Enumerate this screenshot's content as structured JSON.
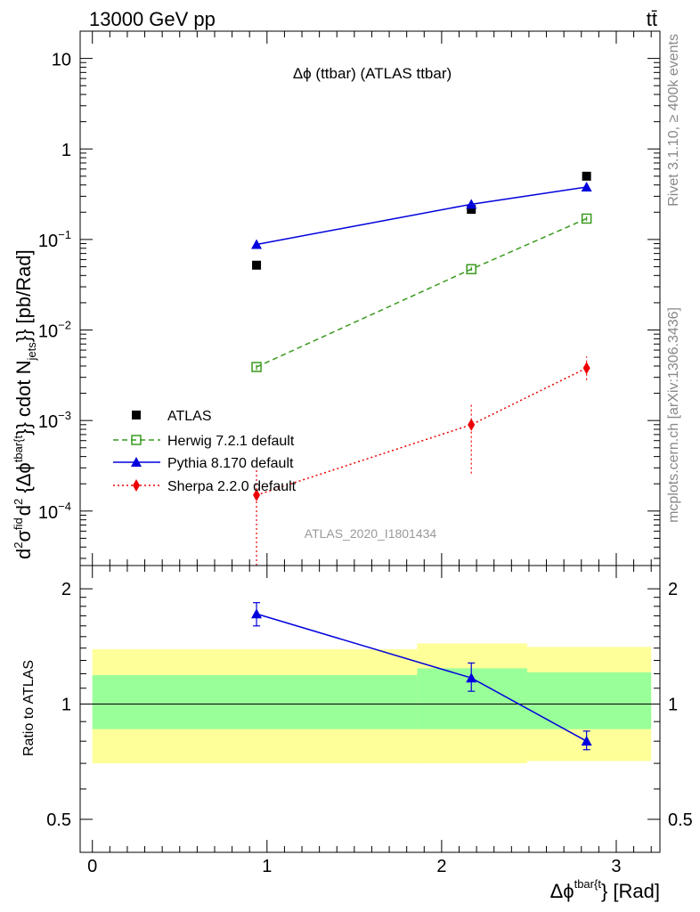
{
  "header": {
    "energy_label": "13000 GeV pp",
    "process_label": "tt̄"
  },
  "side_labels": {
    "rivet": "Rivet 3.1.10, ≥ 400k events",
    "mcplots": "mcplots.cern.ch [arXiv:1306.3436]"
  },
  "chart_data": [
    {
      "type": "line",
      "title": "Δϕ (ttbar) (ATLAS ttbar)",
      "watermark": "ATLAS_2020_I1801434",
      "ylabel": {
        "d1": "d",
        "sup2a": "2",
        "sigma": "σ",
        "fid": "fid",
        "d2": "d",
        "sup2b": "2",
        "brace": " {Δϕ",
        "tbar": "tbar{t",
        "cdot": "}} cdot N",
        "jets": "jets",
        "unit": "}} [pb/Rad]"
      },
      "ylog": true,
      "ylim": [
        2.5e-05,
        20
      ],
      "y_ticks": [
        {
          "value": 0.0001,
          "base": "10",
          "exp": "−4"
        },
        {
          "value": 0.001,
          "base": "10",
          "exp": "−3"
        },
        {
          "value": 0.01,
          "base": "10",
          "exp": "−2"
        },
        {
          "value": 0.1,
          "base": "10",
          "exp": "−1"
        },
        {
          "value": 1,
          "base": "1",
          "exp": ""
        },
        {
          "value": 10,
          "base": "10",
          "exp": ""
        }
      ],
      "xlim": [
        -0.07,
        3.25
      ],
      "legend_position": "bottom-left",
      "series": [
        {
          "name": "ATLAS",
          "color": "#000000",
          "marker": "square",
          "line": "none",
          "x": [
            0.94,
            2.17,
            2.83
          ],
          "y": [
            0.052,
            0.215,
            0.5
          ]
        },
        {
          "name": "Herwig 7.2.1 default",
          "color": "#3a9a1e",
          "marker": "open-square",
          "line": "dashed",
          "x": [
            0.94,
            2.17,
            2.83
          ],
          "y": [
            0.0039,
            0.047,
            0.17
          ],
          "yerr_low": [
            0.0036,
            0.045,
            0.16
          ],
          "yerr_high": [
            0.0042,
            0.05,
            0.18
          ]
        },
        {
          "name": "Pythia 8.170 default",
          "color": "#0000dd",
          "marker": "triangle",
          "line": "solid",
          "x": [
            0.94,
            2.17,
            2.83
          ],
          "y": [
            0.088,
            0.245,
            0.38
          ]
        },
        {
          "name": "Sherpa 2.2.0 default",
          "color": "#ee0000",
          "marker": "diamond",
          "line": "dotted",
          "x": [
            0.94,
            2.17,
            2.83
          ],
          "y": [
            0.00015,
            0.0009,
            0.0038
          ],
          "yerr_low": [
            1e-05,
            0.00026,
            0.0028
          ],
          "yerr_high": [
            0.0003,
            0.00155,
            0.0051
          ]
        }
      ]
    },
    {
      "type": "line",
      "ylabel": "Ratio to ATLAS",
      "xlabel": {
        "delta": "Δϕ",
        "sup": "tbar{t",
        "rest": "} [Rad]"
      },
      "ylim": [
        0.41,
        2.3
      ],
      "y_ticks": [
        {
          "value": 0.5,
          "label": "0.5"
        },
        {
          "value": 1,
          "label": "1"
        },
        {
          "value": 2,
          "label": "2"
        }
      ],
      "xlim": [
        -0.07,
        3.25
      ],
      "x_ticks": [
        {
          "value": 0,
          "label": "0"
        },
        {
          "value": 1,
          "label": "1"
        },
        {
          "value": 2,
          "label": "2"
        },
        {
          "value": 3,
          "label": "3"
        }
      ],
      "reference_line": 1,
      "bands": [
        {
          "x0": 0,
          "x1": 1.86,
          "yellow": [
            0.7,
            1.39
          ],
          "green": [
            0.86,
            1.19
          ]
        },
        {
          "x0": 1.86,
          "x1": 2.49,
          "yellow": [
            0.7,
            1.44
          ],
          "green": [
            0.86,
            1.24
          ]
        },
        {
          "x0": 2.49,
          "x1": 3.2,
          "yellow": [
            0.71,
            1.41
          ],
          "green": [
            0.86,
            1.21
          ]
        }
      ],
      "band_colors": {
        "yellow": "#ffff99",
        "green": "#99ff99"
      },
      "series": [
        {
          "name": "Pythia 8.170 default",
          "color": "#0000dd",
          "marker": "triangle",
          "line": "solid",
          "x": [
            0.94,
            2.17,
            2.83
          ],
          "y": [
            1.72,
            1.17,
            0.8
          ],
          "yerr_low": [
            1.6,
            1.08,
            0.76
          ],
          "yerr_high": [
            1.84,
            1.28,
            0.85
          ]
        }
      ]
    }
  ]
}
